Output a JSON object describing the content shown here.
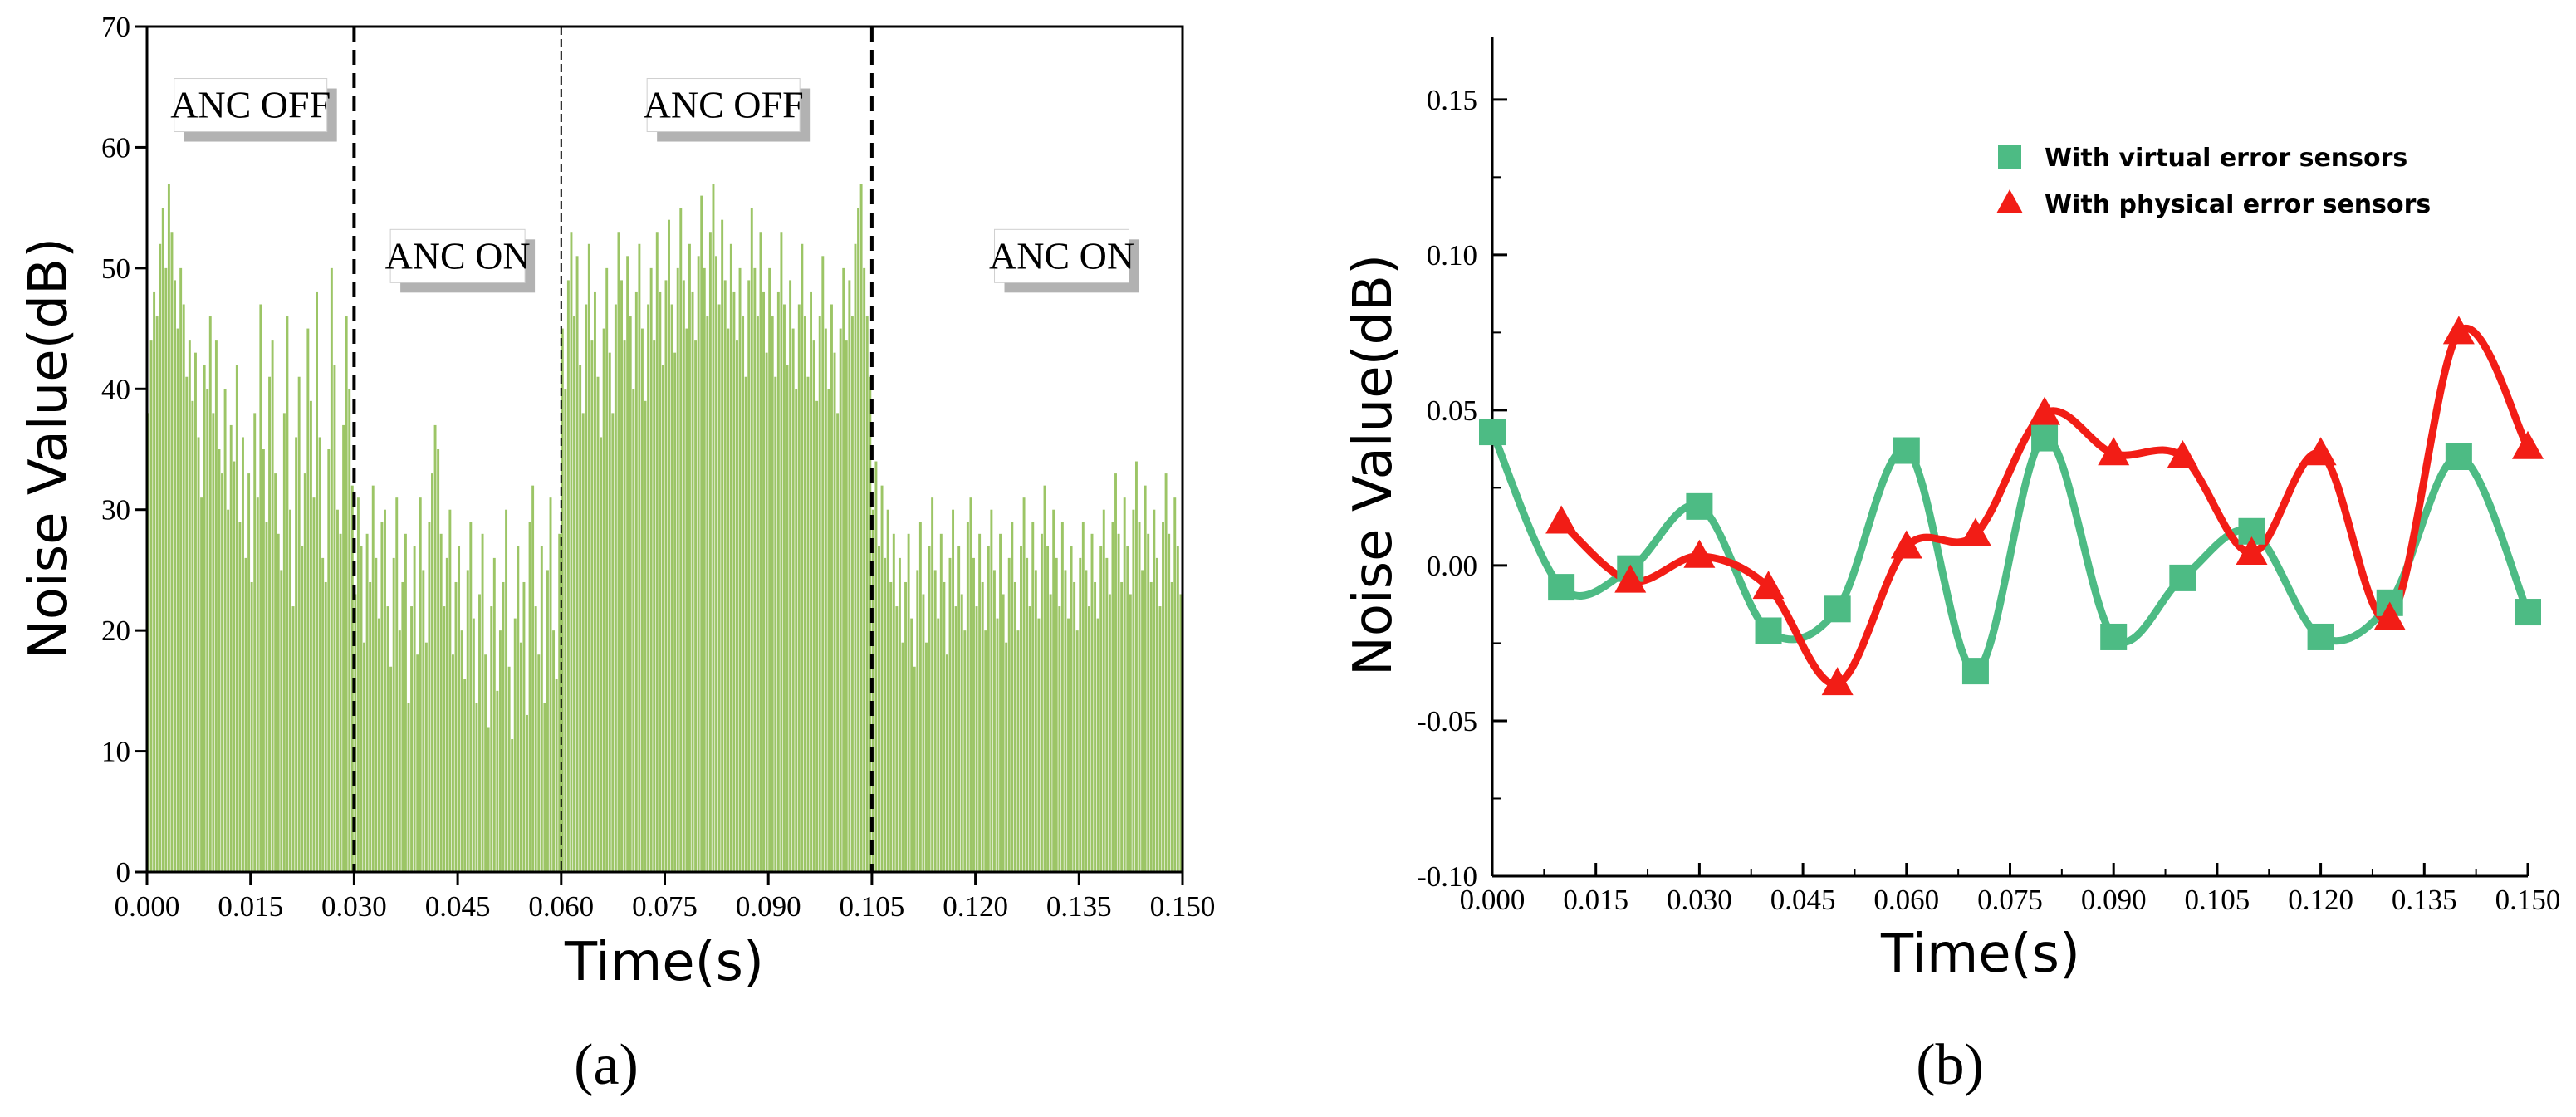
{
  "colors": {
    "bar_fill": "#9cc566",
    "virtual_series": "#4dbb84",
    "physical_series": "#f21d16",
    "axis": "#000000",
    "label_shadow": "#b2b2b2",
    "background": "#ffffff"
  },
  "chart_data": [
    {
      "panel": "(a)",
      "type": "bar",
      "xlabel": "Time(s)",
      "ylabel": "Noise Value(dB)",
      "xlim": [
        0,
        0.15
      ],
      "ylim": [
        0,
        70
      ],
      "x_ticks": [
        "0.000",
        "0.015",
        "0.030",
        "0.045",
        "0.060",
        "0.075",
        "0.090",
        "0.105",
        "0.120",
        "0.135",
        "0.150"
      ],
      "y_ticks": [
        "0",
        "10",
        "20",
        "30",
        "40",
        "50",
        "60",
        "70"
      ],
      "boundaries_s": [
        0.03,
        0.06,
        0.105
      ],
      "annotations": [
        {
          "text": "ANC OFF",
          "x_s": 0.015,
          "y_db": 63.5
        },
        {
          "text": "ANC ON",
          "x_s": 0.045,
          "y_db": 51.0
        },
        {
          "text": "ANC OFF",
          "x_s": 0.0835,
          "y_db": 63.5
        },
        {
          "text": "ANC ON",
          "x_s": 0.1325,
          "y_db": 51.0
        }
      ],
      "series": [
        {
          "name": "ANC OFF (0.000–0.030 s)",
          "x_range": [
            0.0,
            0.03
          ],
          "bar_count": 70,
          "values": [
            38,
            44,
            48,
            46,
            52,
            55,
            50,
            57,
            53,
            49,
            45,
            50,
            47,
            41,
            44,
            39,
            43,
            36,
            31,
            42,
            40,
            46,
            38,
            44,
            35,
            33,
            40,
            30,
            37,
            34,
            42,
            29,
            36,
            26,
            33,
            24,
            38,
            31,
            47,
            35,
            29,
            41,
            44,
            33,
            28,
            25,
            38,
            46,
            30,
            22,
            36,
            41,
            27,
            33,
            45,
            39,
            31,
            48,
            36,
            26,
            24,
            35,
            50,
            42,
            30,
            28,
            37,
            46,
            40,
            32
          ]
        },
        {
          "name": "ANC ON (0.030–0.060 s)",
          "x_range": [
            0.03,
            0.06
          ],
          "bar_count": 70,
          "values": [
            23,
            31,
            27,
            19,
            28,
            24,
            32,
            26,
            21,
            29,
            30,
            22,
            17,
            26,
            31,
            20,
            24,
            28,
            14,
            22,
            27,
            18,
            31,
            25,
            19,
            29,
            33,
            37,
            35,
            28,
            22,
            26,
            30,
            18,
            24,
            27,
            20,
            16,
            25,
            29,
            21,
            14,
            23,
            28,
            18,
            12,
            22,
            26,
            15,
            20,
            24,
            30,
            17,
            11,
            21,
            27,
            19,
            24,
            13,
            29,
            32,
            22,
            18,
            27,
            14,
            25,
            31,
            20,
            16,
            28
          ]
        },
        {
          "name": "ANC OFF (0.060–0.105 s)",
          "x_range": [
            0.06,
            0.105
          ],
          "bar_count": 105,
          "values": [
            45,
            40,
            49,
            53,
            46,
            51,
            42,
            38,
            47,
            52,
            44,
            48,
            41,
            36,
            45,
            50,
            43,
            38,
            47,
            53,
            49,
            44,
            51,
            46,
            40,
            48,
            52,
            45,
            39,
            47,
            50,
            44,
            53,
            48,
            42,
            49,
            54,
            47,
            43,
            50,
            55,
            49,
            45,
            52,
            48,
            44,
            51,
            56,
            50,
            46,
            53,
            57,
            51,
            47,
            54,
            49,
            45,
            52,
            48,
            44,
            50,
            46,
            41,
            49,
            55,
            50,
            46,
            53,
            48,
            43,
            50,
            46,
            41,
            48,
            53,
            47,
            42,
            49,
            45,
            40,
            47,
            52,
            46,
            41,
            48,
            44,
            39,
            46,
            51,
            45,
            40,
            47,
            43,
            38,
            45,
            50,
            44,
            49,
            46,
            52,
            55,
            57,
            50,
            46,
            41
          ]
        },
        {
          "name": "ANC ON (0.105–0.150 s)",
          "x_range": [
            0.105,
            0.15
          ],
          "bar_count": 105,
          "values": [
            30,
            34,
            27,
            32,
            26,
            30,
            24,
            28,
            22,
            26,
            19,
            24,
            28,
            21,
            17,
            25,
            29,
            23,
            19,
            27,
            31,
            25,
            21,
            28,
            24,
            18,
            26,
            30,
            22,
            27,
            23,
            20,
            29,
            31,
            26,
            22,
            28,
            24,
            20,
            27,
            30,
            25,
            21,
            28,
            23,
            19,
            26,
            29,
            24,
            20,
            27,
            31,
            26,
            22,
            29,
            25,
            21,
            28,
            32,
            27,
            23,
            30,
            26,
            22,
            29,
            25,
            21,
            27,
            24,
            20,
            26,
            29,
            25,
            22,
            28,
            24,
            21,
            27,
            30,
            26,
            23,
            29,
            33,
            28,
            24,
            31,
            27,
            23,
            30,
            34,
            29,
            25,
            32,
            28,
            24,
            30,
            26,
            22,
            29,
            33,
            28,
            24,
            31,
            27,
            23
          ]
        }
      ]
    },
    {
      "panel": "(b)",
      "type": "line",
      "xlabel": "Time(s)",
      "ylabel": "Noise Value(dB)",
      "xlim": [
        0,
        0.15
      ],
      "ylim": [
        -0.1,
        0.17
      ],
      "x_ticks": [
        "0.000",
        "0.015",
        "0.030",
        "0.045",
        "0.060",
        "0.075",
        "0.090",
        "0.105",
        "0.120",
        "0.135",
        "0.150"
      ],
      "y_ticks": [
        "-0.10",
        "-0.05",
        "0.00",
        "0.05",
        "0.10",
        "0.15"
      ],
      "legend_position": "top-right",
      "series": [
        {
          "name": "With virtual error sensors",
          "marker": "square",
          "x": [
            0.0,
            0.01,
            0.02,
            0.03,
            0.04,
            0.05,
            0.06,
            0.07,
            0.08,
            0.09,
            0.1,
            0.11,
            0.12,
            0.13,
            0.14,
            0.15
          ],
          "values": [
            0.043,
            -0.007,
            -0.001,
            0.019,
            -0.021,
            -0.014,
            0.037,
            -0.034,
            0.041,
            -0.023,
            -0.004,
            0.011,
            -0.023,
            -0.012,
            0.035,
            -0.015
          ]
        },
        {
          "name": "With physical error sensors",
          "marker": "triangle",
          "x": [
            0.01,
            0.02,
            0.03,
            0.04,
            0.05,
            0.06,
            0.07,
            0.08,
            0.09,
            0.1,
            0.11,
            0.12,
            0.13,
            0.14,
            0.15
          ],
          "values": [
            0.014,
            -0.005,
            0.003,
            -0.007,
            -0.038,
            0.006,
            0.01,
            0.049,
            0.036,
            0.035,
            0.004,
            0.036,
            -0.017,
            0.075,
            0.038
          ]
        }
      ]
    }
  ],
  "captions": [
    "(a)",
    "(b)"
  ]
}
